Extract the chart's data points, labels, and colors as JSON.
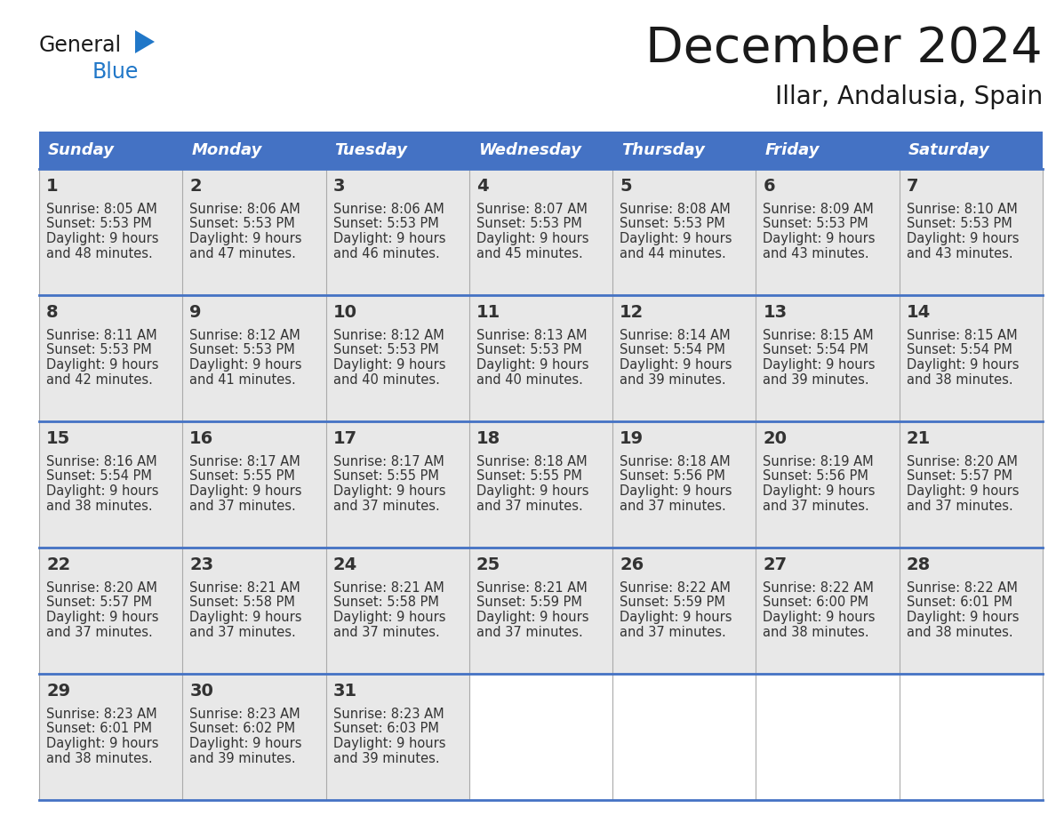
{
  "title": "December 2024",
  "subtitle": "Illar, Andalusia, Spain",
  "header_color": "#4472C4",
  "header_text_color": "#FFFFFF",
  "day_names": [
    "Sunday",
    "Monday",
    "Tuesday",
    "Wednesday",
    "Thursday",
    "Friday",
    "Saturday"
  ],
  "cell_bg_color": "#E8E8E8",
  "grid_line_color": "#4472C4",
  "day_number_color": "#333333",
  "cell_text_color": "#333333",
  "title_color": "#1A1A1A",
  "logo_general_color": "#1A1A1A",
  "logo_blue_color": "#2077C8",
  "logo_triangle_color": "#2077C8",
  "weeks": [
    [
      {
        "day": 1,
        "sunrise": "8:05 AM",
        "sunset": "5:53 PM",
        "daylight_line1": "Daylight: 9 hours",
        "daylight_line2": "and 48 minutes."
      },
      {
        "day": 2,
        "sunrise": "8:06 AM",
        "sunset": "5:53 PM",
        "daylight_line1": "Daylight: 9 hours",
        "daylight_line2": "and 47 minutes."
      },
      {
        "day": 3,
        "sunrise": "8:06 AM",
        "sunset": "5:53 PM",
        "daylight_line1": "Daylight: 9 hours",
        "daylight_line2": "and 46 minutes."
      },
      {
        "day": 4,
        "sunrise": "8:07 AM",
        "sunset": "5:53 PM",
        "daylight_line1": "Daylight: 9 hours",
        "daylight_line2": "and 45 minutes."
      },
      {
        "day": 5,
        "sunrise": "8:08 AM",
        "sunset": "5:53 PM",
        "daylight_line1": "Daylight: 9 hours",
        "daylight_line2": "and 44 minutes."
      },
      {
        "day": 6,
        "sunrise": "8:09 AM",
        "sunset": "5:53 PM",
        "daylight_line1": "Daylight: 9 hours",
        "daylight_line2": "and 43 minutes."
      },
      {
        "day": 7,
        "sunrise": "8:10 AM",
        "sunset": "5:53 PM",
        "daylight_line1": "Daylight: 9 hours",
        "daylight_line2": "and 43 minutes."
      }
    ],
    [
      {
        "day": 8,
        "sunrise": "8:11 AM",
        "sunset": "5:53 PM",
        "daylight_line1": "Daylight: 9 hours",
        "daylight_line2": "and 42 minutes."
      },
      {
        "day": 9,
        "sunrise": "8:12 AM",
        "sunset": "5:53 PM",
        "daylight_line1": "Daylight: 9 hours",
        "daylight_line2": "and 41 minutes."
      },
      {
        "day": 10,
        "sunrise": "8:12 AM",
        "sunset": "5:53 PM",
        "daylight_line1": "Daylight: 9 hours",
        "daylight_line2": "and 40 minutes."
      },
      {
        "day": 11,
        "sunrise": "8:13 AM",
        "sunset": "5:53 PM",
        "daylight_line1": "Daylight: 9 hours",
        "daylight_line2": "and 40 minutes."
      },
      {
        "day": 12,
        "sunrise": "8:14 AM",
        "sunset": "5:54 PM",
        "daylight_line1": "Daylight: 9 hours",
        "daylight_line2": "and 39 minutes."
      },
      {
        "day": 13,
        "sunrise": "8:15 AM",
        "sunset": "5:54 PM",
        "daylight_line1": "Daylight: 9 hours",
        "daylight_line2": "and 39 minutes."
      },
      {
        "day": 14,
        "sunrise": "8:15 AM",
        "sunset": "5:54 PM",
        "daylight_line1": "Daylight: 9 hours",
        "daylight_line2": "and 38 minutes."
      }
    ],
    [
      {
        "day": 15,
        "sunrise": "8:16 AM",
        "sunset": "5:54 PM",
        "daylight_line1": "Daylight: 9 hours",
        "daylight_line2": "and 38 minutes."
      },
      {
        "day": 16,
        "sunrise": "8:17 AM",
        "sunset": "5:55 PM",
        "daylight_line1": "Daylight: 9 hours",
        "daylight_line2": "and 37 minutes."
      },
      {
        "day": 17,
        "sunrise": "8:17 AM",
        "sunset": "5:55 PM",
        "daylight_line1": "Daylight: 9 hours",
        "daylight_line2": "and 37 minutes."
      },
      {
        "day": 18,
        "sunrise": "8:18 AM",
        "sunset": "5:55 PM",
        "daylight_line1": "Daylight: 9 hours",
        "daylight_line2": "and 37 minutes."
      },
      {
        "day": 19,
        "sunrise": "8:18 AM",
        "sunset": "5:56 PM",
        "daylight_line1": "Daylight: 9 hours",
        "daylight_line2": "and 37 minutes."
      },
      {
        "day": 20,
        "sunrise": "8:19 AM",
        "sunset": "5:56 PM",
        "daylight_line1": "Daylight: 9 hours",
        "daylight_line2": "and 37 minutes."
      },
      {
        "day": 21,
        "sunrise": "8:20 AM",
        "sunset": "5:57 PM",
        "daylight_line1": "Daylight: 9 hours",
        "daylight_line2": "and 37 minutes."
      }
    ],
    [
      {
        "day": 22,
        "sunrise": "8:20 AM",
        "sunset": "5:57 PM",
        "daylight_line1": "Daylight: 9 hours",
        "daylight_line2": "and 37 minutes."
      },
      {
        "day": 23,
        "sunrise": "8:21 AM",
        "sunset": "5:58 PM",
        "daylight_line1": "Daylight: 9 hours",
        "daylight_line2": "and 37 minutes."
      },
      {
        "day": 24,
        "sunrise": "8:21 AM",
        "sunset": "5:58 PM",
        "daylight_line1": "Daylight: 9 hours",
        "daylight_line2": "and 37 minutes."
      },
      {
        "day": 25,
        "sunrise": "8:21 AM",
        "sunset": "5:59 PM",
        "daylight_line1": "Daylight: 9 hours",
        "daylight_line2": "and 37 minutes."
      },
      {
        "day": 26,
        "sunrise": "8:22 AM",
        "sunset": "5:59 PM",
        "daylight_line1": "Daylight: 9 hours",
        "daylight_line2": "and 37 minutes."
      },
      {
        "day": 27,
        "sunrise": "8:22 AM",
        "sunset": "6:00 PM",
        "daylight_line1": "Daylight: 9 hours",
        "daylight_line2": "and 38 minutes."
      },
      {
        "day": 28,
        "sunrise": "8:22 AM",
        "sunset": "6:01 PM",
        "daylight_line1": "Daylight: 9 hours",
        "daylight_line2": "and 38 minutes."
      }
    ],
    [
      {
        "day": 29,
        "sunrise": "8:23 AM",
        "sunset": "6:01 PM",
        "daylight_line1": "Daylight: 9 hours",
        "daylight_line2": "and 38 minutes."
      },
      {
        "day": 30,
        "sunrise": "8:23 AM",
        "sunset": "6:02 PM",
        "daylight_line1": "Daylight: 9 hours",
        "daylight_line2": "and 39 minutes."
      },
      {
        "day": 31,
        "sunrise": "8:23 AM",
        "sunset": "6:03 PM",
        "daylight_line1": "Daylight: 9 hours",
        "daylight_line2": "and 39 minutes."
      },
      null,
      null,
      null,
      null
    ]
  ]
}
